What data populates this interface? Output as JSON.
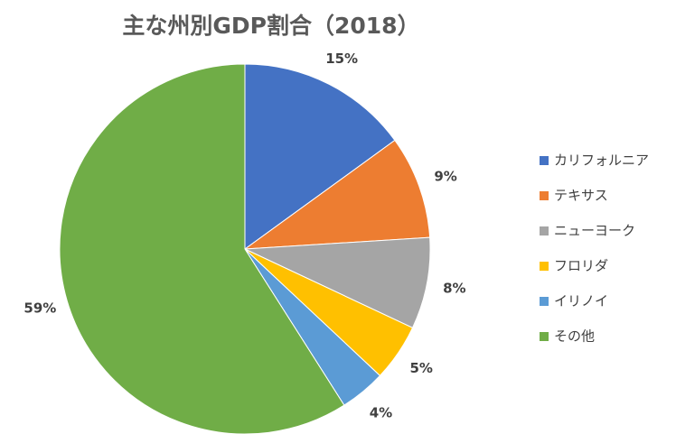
{
  "chart_data": {
    "type": "pie",
    "title": "主な州別GDP割合（2018）",
    "categories": [
      "カリフォルニア",
      "テキサス",
      "ニューヨーク",
      "フロリダ",
      "イリノイ",
      "その他"
    ],
    "values": [
      15,
      9,
      8,
      5,
      4,
      59
    ],
    "value_labels": [
      "15%",
      "9%",
      "8%",
      "5%",
      "4%",
      "59%"
    ],
    "colors": [
      "#4472c4",
      "#ed7d31",
      "#a5a5a5",
      "#ffc000",
      "#5b9bd5",
      "#70ad47"
    ],
    "legend": "right"
  }
}
